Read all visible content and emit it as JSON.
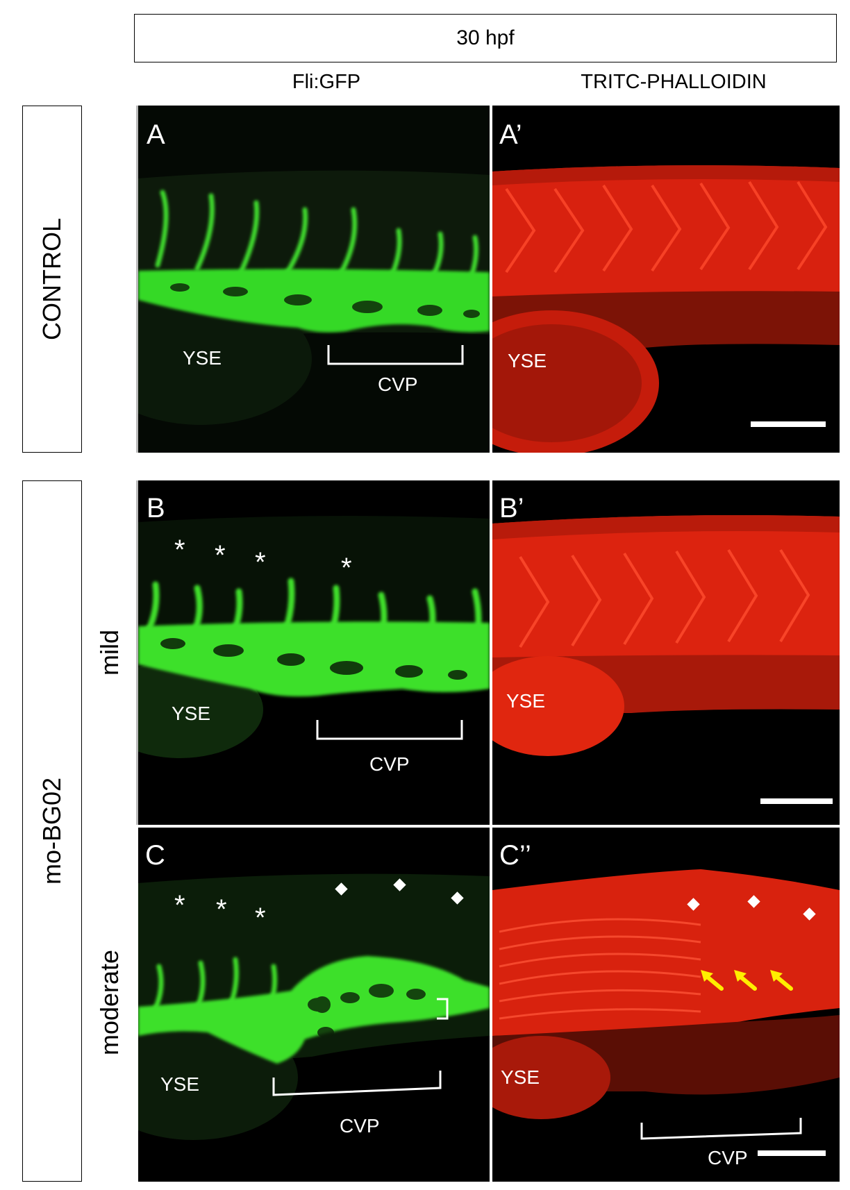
{
  "header": {
    "stage": "30 hpf"
  },
  "columns": {
    "left": "Fli:GFP",
    "right": "TRITC-PHALLOIDIN"
  },
  "rows": {
    "control": "CONTROL",
    "treatment": "mo-BG02",
    "mild": "mild",
    "moderate": "moderate"
  },
  "panels": {
    "A": "A",
    "A_prime": "A’",
    "B": "B",
    "B_prime": "B’",
    "C": "C",
    "C_dprime": "C’’"
  },
  "labels": {
    "yse": "YSE",
    "cvp": "CVP"
  },
  "markers": {
    "asterisk": "*"
  },
  "colors": {
    "gfp": "#39e62a",
    "phalloidin": "#ff2a12",
    "arrow": "#ffee00",
    "background": "#000000"
  }
}
